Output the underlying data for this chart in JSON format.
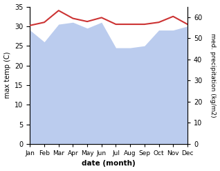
{
  "months": [
    "Jan",
    "Feb",
    "Mar",
    "Apr",
    "May",
    "Jun",
    "Jul",
    "Aug",
    "Sep",
    "Oct",
    "Nov",
    "Dec"
  ],
  "temp": [
    30.2,
    31.0,
    34.0,
    32.0,
    31.2,
    32.2,
    30.5,
    30.5,
    30.5,
    31.0,
    32.5,
    30.5
  ],
  "precip": [
    29.0,
    26.0,
    30.5,
    31.0,
    29.5,
    31.0,
    24.5,
    24.5,
    25.0,
    29.0,
    29.0,
    30.0
  ],
  "temp_color": "#cc3333",
  "precip_color": "#bbccee",
  "ylim_left": [
    0,
    35
  ],
  "ylim_right": [
    0,
    65
  ],
  "yticks_left": [
    0,
    5,
    10,
    15,
    20,
    25,
    30,
    35
  ],
  "yticks_right": [
    0,
    10,
    20,
    30,
    40,
    50,
    60
  ],
  "xlabel": "date (month)",
  "ylabel_left": "max temp (C)",
  "ylabel_right": "med. precipitation (kg/m2)",
  "title": ""
}
